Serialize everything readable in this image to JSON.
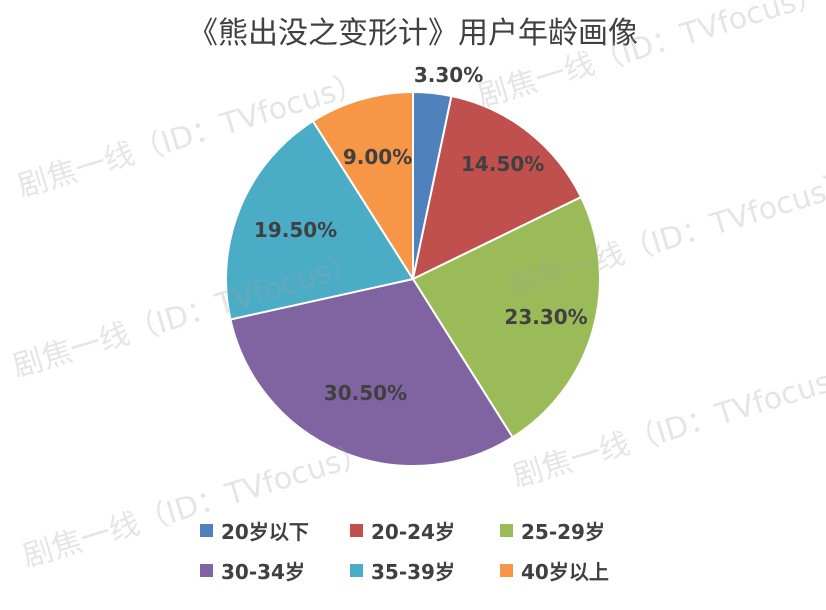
{
  "chart_data": {
    "type": "pie",
    "title": "《熊出没之变形计》用户年龄画像",
    "categories": [
      "20岁以下",
      "20-24岁",
      "25-29岁",
      "30-34岁",
      "35-39岁",
      "40岁以上"
    ],
    "values": [
      3.3,
      14.5,
      23.3,
      30.5,
      19.5,
      9.0
    ],
    "data_labels": [
      "3.30%",
      "14.50%",
      "23.30%",
      "30.50%",
      "19.50%",
      "9.00%"
    ],
    "colors": [
      "#4F81BD",
      "#C0504D",
      "#9BBB59",
      "#8064A2",
      "#4BACC6",
      "#F79646"
    ],
    "legend_placement": "bottom",
    "start_angle": "12 o'clock, clockwise"
  },
  "watermark": "剧焦一线（ID：TVfocus）"
}
